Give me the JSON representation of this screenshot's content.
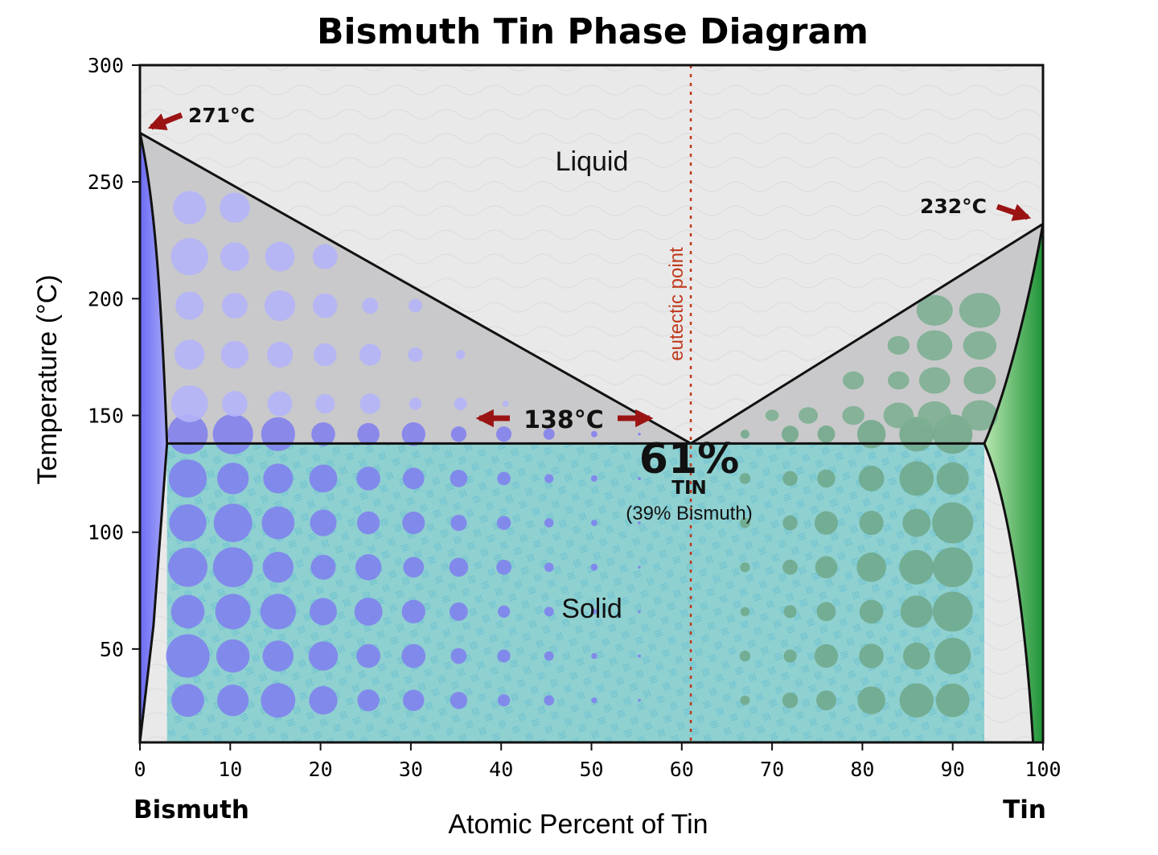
{
  "title": "Bismuth Tin Phase Diagram",
  "axes": {
    "x_label": "Atomic Percent of Tin",
    "y_label": "Temperature (°C)",
    "x_ticks": [
      "0",
      "10",
      "20",
      "30",
      "40",
      "50",
      "60",
      "70",
      "80",
      "90",
      "100"
    ],
    "y_ticks": [
      "50",
      "100",
      "150",
      "200",
      "250",
      "300"
    ],
    "x_range": [
      0,
      100
    ],
    "y_range": [
      10,
      300
    ]
  },
  "endpoints": {
    "left": "Bismuth",
    "right": "Tin"
  },
  "regions": {
    "liquid": "Liquid",
    "solid": "Solid"
  },
  "annotations": {
    "bi_melting": "271°C",
    "sn_melting": "232°C",
    "eutectic_temp": "138°C",
    "eutectic_line": "eutectic point",
    "eutectic_pct": "61%",
    "eutectic_tin": "TIN",
    "eutectic_bismuth": "(39% Bismuth)"
  },
  "colors": {
    "liquid": "#e9e9ea",
    "two_phase": "#c9c9cb",
    "solid": "#8fd0d0",
    "bismuth": "#8585ee",
    "tin": "#2fa04a",
    "arrow": "#9b1414",
    "eutectic_line": "#c0391b"
  },
  "phase_points": {
    "bi_melting": {
      "x": 0,
      "y": 271
    },
    "sn_melting": {
      "x": 100,
      "y": 232
    },
    "eutectic": {
      "x": 61,
      "y": 138
    }
  }
}
